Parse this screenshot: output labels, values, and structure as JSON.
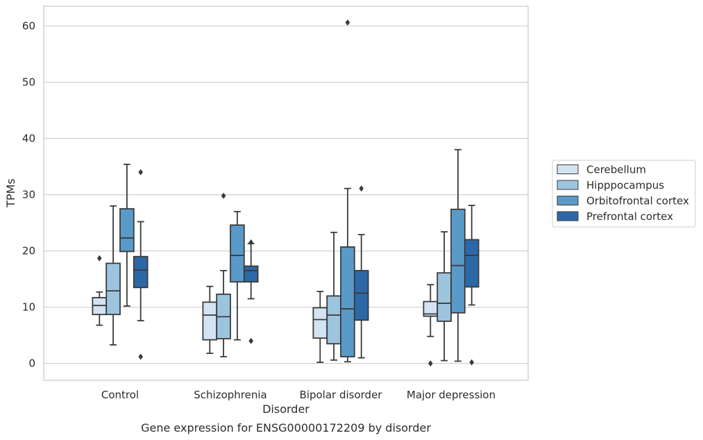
{
  "caption": "Gene expression for ENSG00000172209 by disorder",
  "chart_data": {
    "type": "box",
    "title": "",
    "xlabel": "Disorder",
    "ylabel": "TPMs",
    "ylim": [
      -3,
      63.5
    ],
    "yticks": [
      0,
      10,
      20,
      30,
      40,
      50,
      60
    ],
    "grid": "horizontal",
    "legend_position": "right",
    "categories": [
      "Control",
      "Schizophrenia",
      "Bipolar disorder",
      "Major depression"
    ],
    "series": [
      {
        "name": "Cerebellum",
        "color": "#d4e3f3",
        "boxes": [
          {
            "whisker_low": 6.8,
            "q1": 8.7,
            "median": 10.3,
            "q3": 11.7,
            "whisker_high": 12.7,
            "outliers": [
              18.7
            ]
          },
          {
            "whisker_low": 1.8,
            "q1": 4.2,
            "median": 8.6,
            "q3": 10.9,
            "whisker_high": 13.7,
            "outliers": []
          },
          {
            "whisker_low": 0.2,
            "q1": 4.5,
            "median": 7.8,
            "q3": 9.9,
            "whisker_high": 12.8,
            "outliers": []
          },
          {
            "whisker_low": 4.8,
            "q1": 8.4,
            "median": 8.8,
            "q3": 11.0,
            "whisker_high": 14.0,
            "outliers": [
              0.0
            ]
          }
        ]
      },
      {
        "name": "Hipppocampus",
        "color": "#9cc4df",
        "boxes": [
          {
            "whisker_low": 3.3,
            "q1": 8.7,
            "median": 12.9,
            "q3": 17.8,
            "whisker_high": 28.0,
            "outliers": []
          },
          {
            "whisker_low": 1.2,
            "q1": 4.4,
            "median": 8.3,
            "q3": 12.3,
            "whisker_high": 16.5,
            "outliers": [
              29.8
            ]
          },
          {
            "whisker_low": 0.6,
            "q1": 3.5,
            "median": 8.6,
            "q3": 12.0,
            "whisker_high": 23.3,
            "outliers": []
          },
          {
            "whisker_low": 0.5,
            "q1": 7.5,
            "median": 10.7,
            "q3": 16.1,
            "whisker_high": 23.4,
            "outliers": []
          }
        ]
      },
      {
        "name": "Orbitofrontal cortex",
        "color": "#5a9ac8",
        "boxes": [
          {
            "whisker_low": 10.2,
            "q1": 19.9,
            "median": 22.3,
            "q3": 27.5,
            "whisker_high": 35.4,
            "outliers": []
          },
          {
            "whisker_low": 4.2,
            "q1": 14.5,
            "median": 19.2,
            "q3": 24.6,
            "whisker_high": 27.0,
            "outliers": []
          },
          {
            "whisker_low": 0.3,
            "q1": 1.2,
            "median": 9.7,
            "q3": 20.7,
            "whisker_high": 31.1,
            "outliers": [
              60.6
            ]
          },
          {
            "whisker_low": 0.4,
            "q1": 9.0,
            "median": 17.4,
            "q3": 27.4,
            "whisker_high": 38.0,
            "outliers": []
          }
        ]
      },
      {
        "name": "Prefrontal cortex",
        "color": "#2d68a6",
        "boxes": [
          {
            "whisker_low": 7.6,
            "q1": 13.5,
            "median": 16.6,
            "q3": 19.0,
            "whisker_high": 25.2,
            "outliers": [
              34.0,
              1.2
            ]
          },
          {
            "whisker_low": 11.5,
            "q1": 14.5,
            "median": 16.5,
            "q3": 17.3,
            "whisker_high": 21.3,
            "outliers": [
              4.0,
              21.5
            ]
          },
          {
            "whisker_low": 1.0,
            "q1": 7.7,
            "median": 12.5,
            "q3": 16.5,
            "whisker_high": 22.9,
            "outliers": [
              31.1
            ]
          },
          {
            "whisker_low": 10.4,
            "q1": 13.6,
            "median": 19.2,
            "q3": 22.0,
            "whisker_high": 28.1,
            "outliers": [
              0.2
            ]
          }
        ]
      }
    ]
  }
}
